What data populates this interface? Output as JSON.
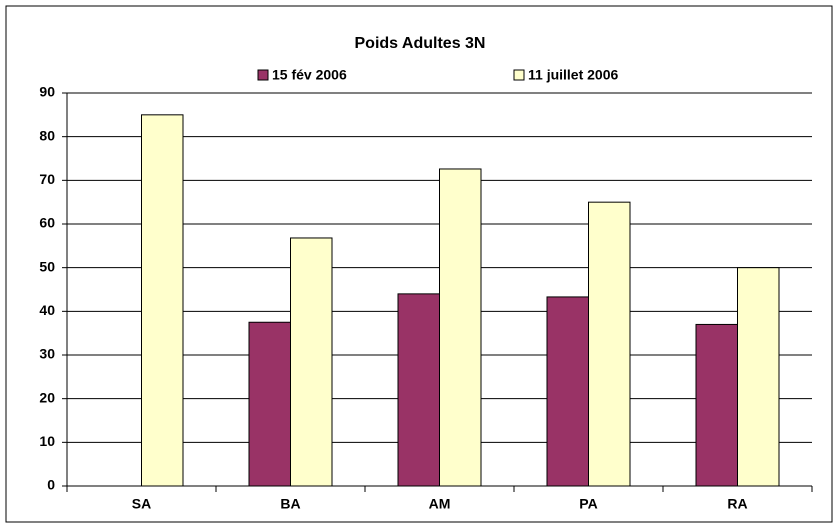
{
  "chart_data": {
    "type": "bar",
    "title": "Poids Adultes 3N",
    "categories": [
      "SA",
      "BA",
      "AM",
      "PA",
      "RA"
    ],
    "series": [
      {
        "name": "15 fév 2006",
        "color": "#993366",
        "values": [
          null,
          37.5,
          44,
          43.3,
          37
        ]
      },
      {
        "name": "11 juillet 2006",
        "color": "#ffffcc",
        "values": [
          85,
          56.8,
          72.6,
          65,
          50
        ]
      }
    ],
    "ylim": [
      0,
      90
    ],
    "yticks": [
      0,
      10,
      20,
      30,
      40,
      50,
      60,
      70,
      80,
      90
    ],
    "grid": true,
    "legend": "top"
  }
}
